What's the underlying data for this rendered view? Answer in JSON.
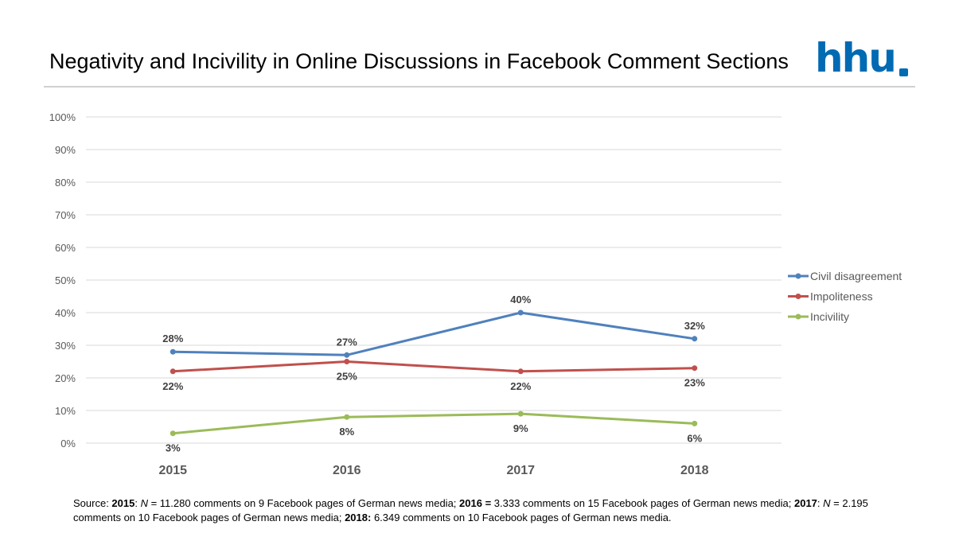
{
  "title": "Negativity and Incivility in Online Discussions in Facebook Comment Sections",
  "logo_text": "hhu",
  "colors": {
    "brand": "#006ab3"
  },
  "chart_data": {
    "type": "line",
    "title": "",
    "xlabel": "",
    "ylabel": "",
    "categories": [
      "2015",
      "2016",
      "2017",
      "2018"
    ],
    "ylim": [
      0,
      100
    ],
    "yticks": [
      "0%",
      "10%",
      "20%",
      "30%",
      "40%",
      "50%",
      "60%",
      "70%",
      "80%",
      "90%",
      "100%"
    ],
    "grid": true,
    "legend_position": "right",
    "series": [
      {
        "name": "Civil disagreement",
        "color": "#4f81bd",
        "values": [
          28,
          27,
          40,
          32
        ],
        "labels": [
          "28%",
          "27%",
          "40%",
          "32%"
        ],
        "label_side": [
          "above",
          "above",
          "above",
          "above"
        ]
      },
      {
        "name": "Impoliteness",
        "color": "#c0504d",
        "values": [
          22,
          25,
          22,
          23
        ],
        "labels": [
          "22%",
          "25%",
          "22%",
          "23%"
        ],
        "label_side": [
          "below",
          "below",
          "below",
          "below"
        ]
      },
      {
        "name": "Incivility",
        "color": "#9bbb59",
        "values": [
          3,
          8,
          9,
          6
        ],
        "labels": [
          "3%",
          "8%",
          "9%",
          "6%"
        ],
        "label_side": [
          "below",
          "below",
          "below",
          "below"
        ]
      }
    ]
  },
  "source": {
    "prefix": "Source: ",
    "y2015": "2015",
    "s2015": ": ",
    "n1": "N",
    "t2015": " = 11.280 comments on 9 Facebook pages of German news media; ",
    "y2016": "2016 =",
    "t2016": " 3.333 comments on 15 Facebook pages of German news media;  ",
    "y2017": "2017",
    "s2017": ": ",
    "n2": "N",
    "t2017": " = 2.195 comments on 10 Facebook pages of German news media; ",
    "y2018": "2018:",
    "t2018": " 6.349 comments on 10 Facebook pages of German news media."
  }
}
